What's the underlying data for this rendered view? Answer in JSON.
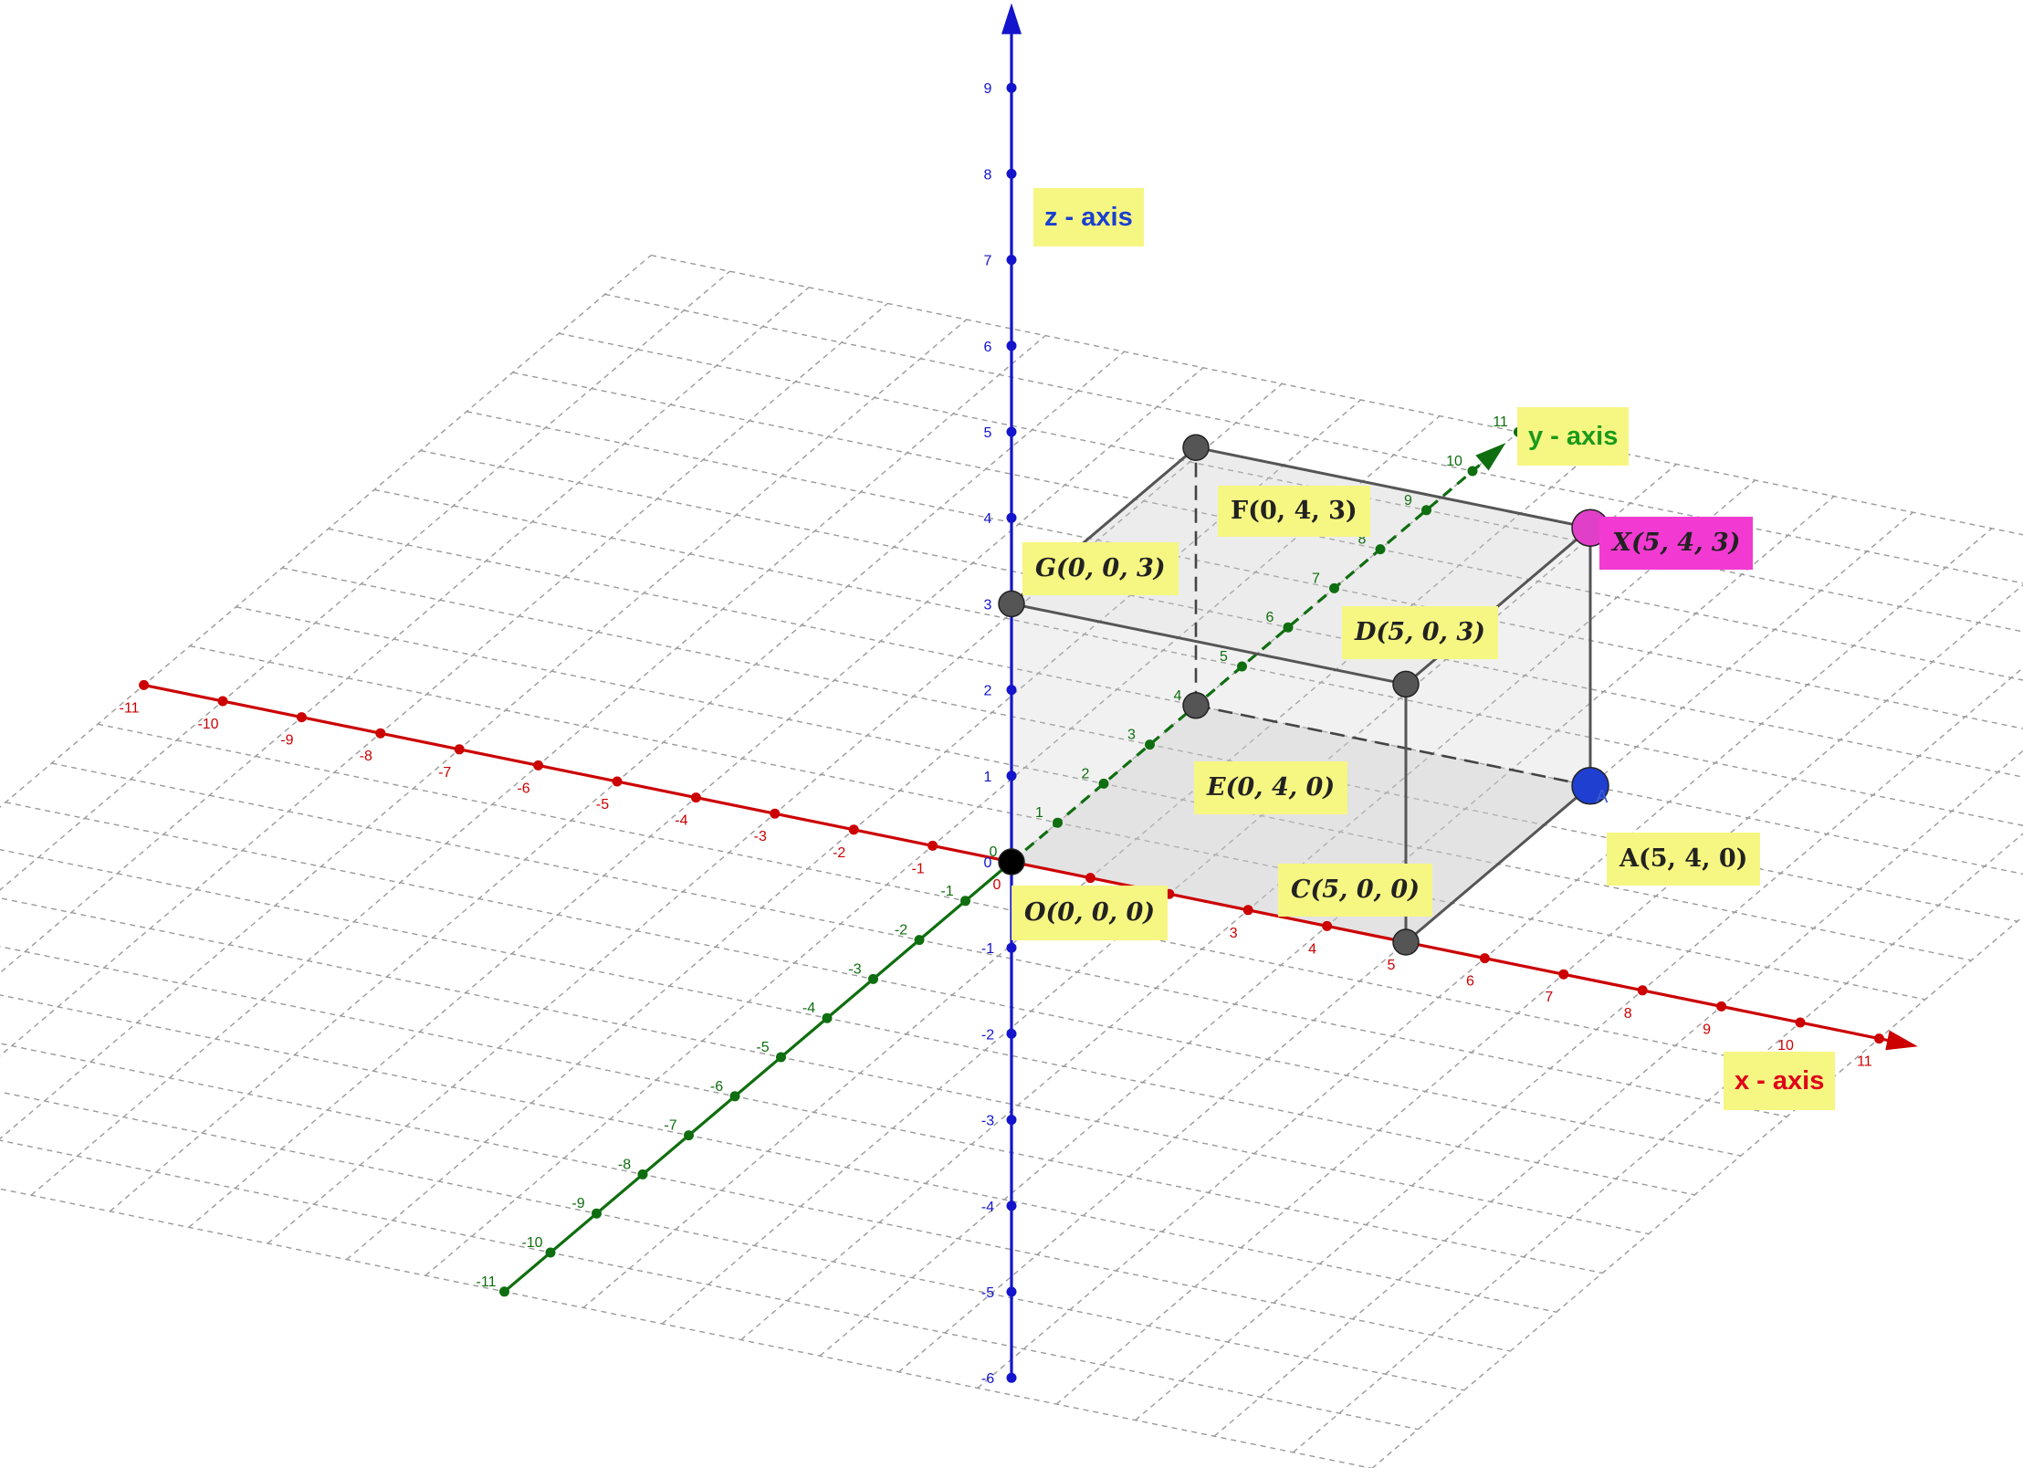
{
  "axis_labels": {
    "x": {
      "text": "x - axis",
      "color": "#e0001a"
    },
    "y": {
      "text": "y - axis",
      "color": "#1a9a1a"
    },
    "z": {
      "text": "z - axis",
      "color": "#1a3fd0"
    }
  },
  "axes": {
    "x": {
      "color": "#cc0000",
      "min": -11,
      "max": 11
    },
    "y": {
      "color": "#0f6e0f",
      "min": -11,
      "max": 11
    },
    "z": {
      "color": "#1414cc",
      "min": -6,
      "max": 9
    }
  },
  "points": [
    {
      "id": "O",
      "label": "O(0, 0, 0)",
      "coords": [
        0,
        0,
        0
      ],
      "marker": "#000000"
    },
    {
      "id": "A",
      "label": "A(5, 4, 0)",
      "coords": [
        5,
        4,
        0
      ],
      "marker": "#1f3fd0",
      "tag": "A"
    },
    {
      "id": "C",
      "label": "C(5, 0, 0)",
      "coords": [
        5,
        0,
        0
      ],
      "marker": "#555555"
    },
    {
      "id": "D",
      "label": "D(5, 0, 3)",
      "coords": [
        5,
        0,
        3
      ],
      "marker": "#555555"
    },
    {
      "id": "E",
      "label": "E(0, 4, 0)",
      "coords": [
        0,
        4,
        0
      ],
      "marker": "#555555"
    },
    {
      "id": "F",
      "label": "F(0, 4, 3)",
      "coords": [
        0,
        4,
        3
      ],
      "marker": "#555555"
    },
    {
      "id": "G",
      "label": "G(0, 0, 3)",
      "coords": [
        0,
        0,
        3
      ],
      "marker": "#555555"
    },
    {
      "id": "X",
      "label": "X(5, 4, 3)",
      "coords": [
        5,
        4,
        3
      ],
      "marker": "#e040c8"
    }
  ],
  "colors": {
    "label_bg": "#f6f682",
    "label_bg_x": "#f23ad2",
    "box_fill": "#c8c8c8",
    "box_edge": "#555555",
    "grid": "#9a9a9a"
  }
}
